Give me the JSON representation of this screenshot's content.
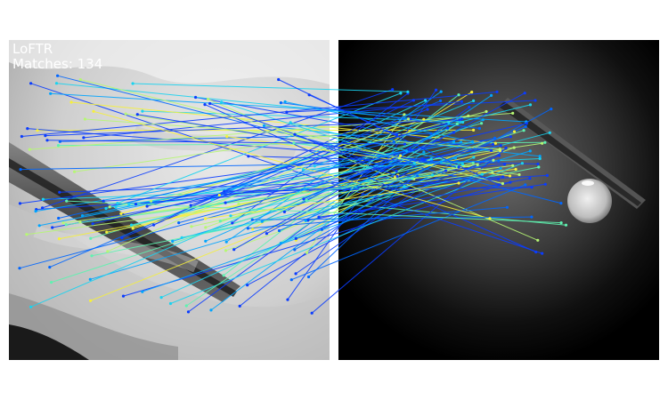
{
  "overlay": {
    "method": "LoFTR",
    "matches_prefix": "Matches: ",
    "matches_count": 134
  },
  "colormap": [
    "#0a3cff",
    "#0066ff",
    "#00a4ff",
    "#19d3f0",
    "#5ff2b0",
    "#b6f774",
    "#f6f03a"
  ]
}
